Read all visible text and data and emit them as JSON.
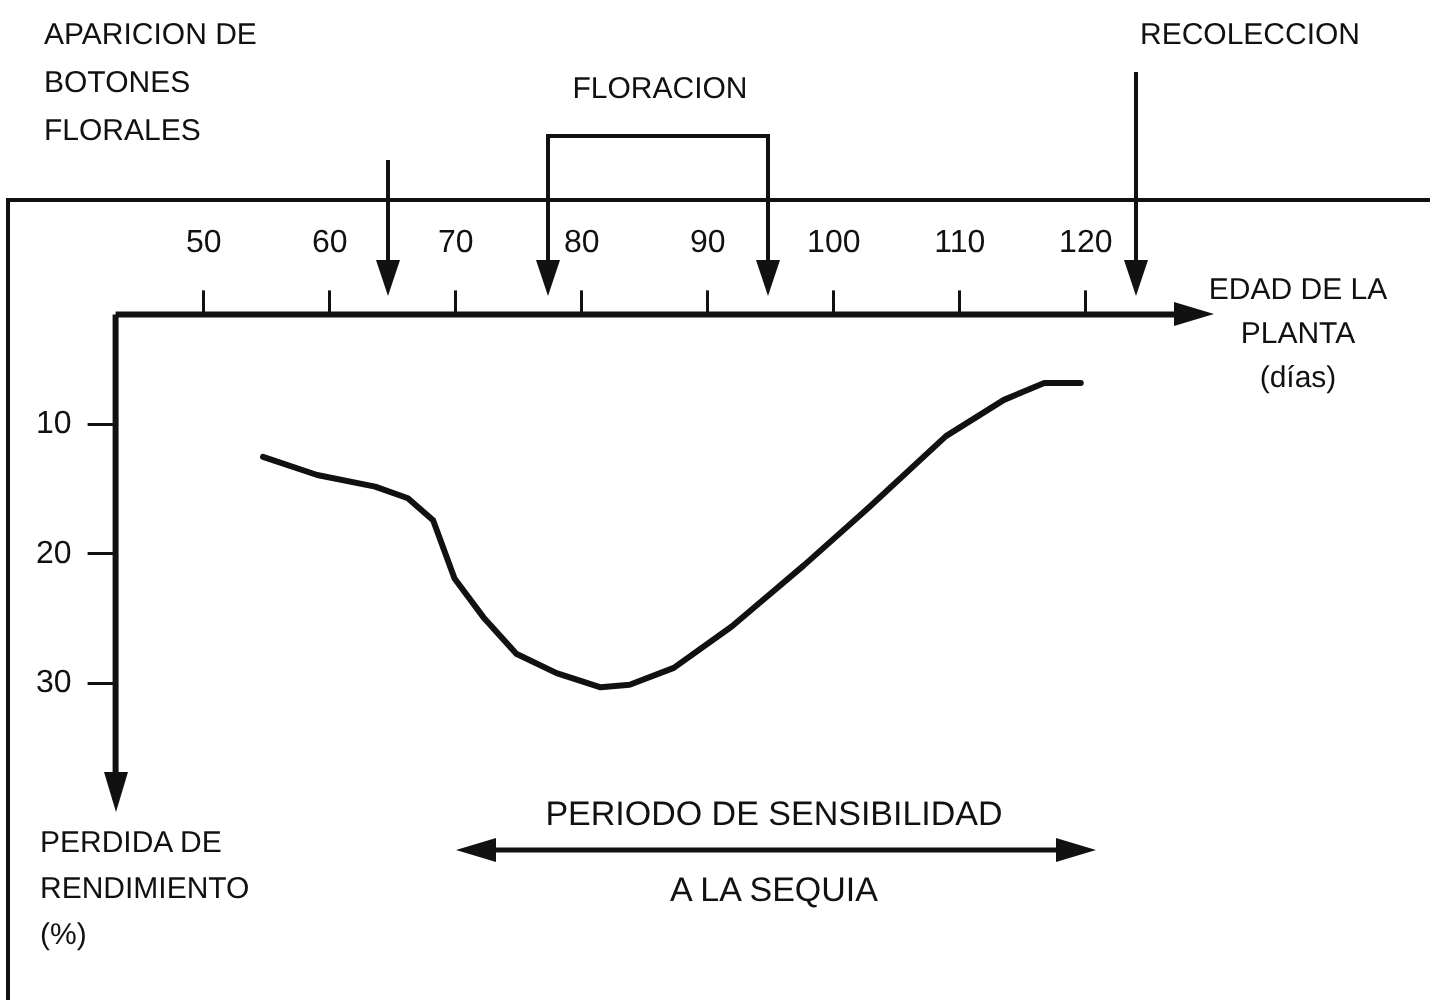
{
  "chart_data": {
    "type": "line",
    "xlabel": "EDAD DE LA PLANTA (días)",
    "ylabel": "PERDIDA DE RENDIMIENTO (%)",
    "x": [
      54.7,
      59.0,
      63.6,
      66.2,
      68.2,
      69.9,
      72.2,
      74.8,
      78.0,
      81.5,
      83.8,
      87.3,
      91.9,
      97.6,
      102.8,
      108.9,
      113.5,
      116.7,
      119.6
    ],
    "series": [
      {
        "color": "#111111",
        "values": [
          12.5,
          13.9,
          14.8,
          15.7,
          17.4,
          21.9,
          24.9,
          27.7,
          29.2,
          30.3,
          30.1,
          28.8,
          25.6,
          20.9,
          16.4,
          10.9,
          8.1,
          6.8,
          6.8
        ]
      }
    ],
    "xlim": [
      43,
      127
    ],
    "xticks": [
      50,
      60,
      70,
      80,
      90,
      100,
      110,
      120
    ],
    "ylim": [
      39,
      1.5
    ],
    "yticks": [
      10,
      20,
      30
    ],
    "annotations": [
      "APARICION DE BOTONES FLORALES",
      "FLORACION",
      "RECOLECCION",
      "PERIODO DE SENSIBILIDAD A LA SEQUIA"
    ],
    "grid": false,
    "legend": false,
    "marker": "none",
    "line_style": "solid"
  }
}
